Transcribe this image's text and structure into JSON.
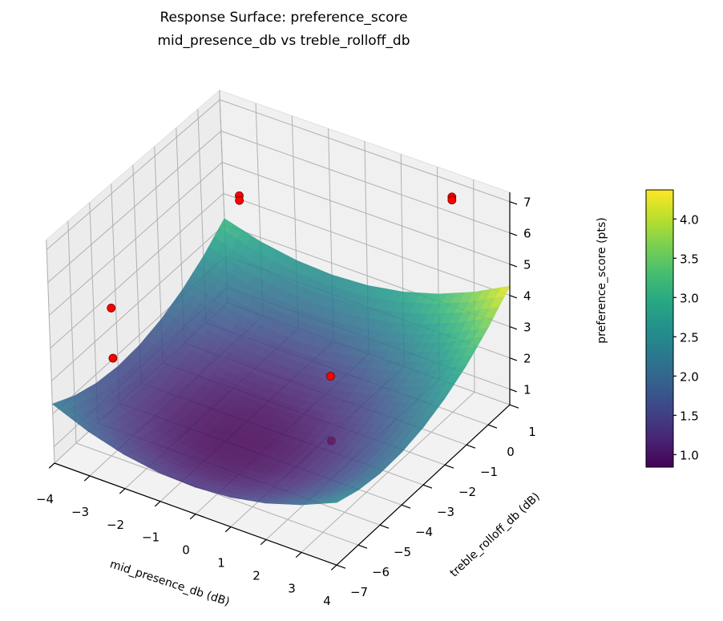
{
  "chart_data": {
    "type": "surface",
    "title": "Response Surface: preference_score",
    "subtitle": "mid_presence_db vs treble_rolloff_db",
    "xlabel": "mid_presence_db (dB)",
    "ylabel": "treble_rolloff_db (dB)",
    "zlabel": "preference_score (pts)",
    "xlim": [
      -4,
      4
    ],
    "ylim": [
      -7,
      1
    ],
    "zlim": [
      0.5,
      7.3
    ],
    "xticks": [
      "−4",
      "−3",
      "−2",
      "−1",
      "0",
      "1",
      "2",
      "3",
      "4"
    ],
    "yticks": [
      "−7",
      "−6",
      "−5",
      "−4",
      "−3",
      "−2",
      "−1",
      "0",
      "1"
    ],
    "zticks": [
      "1",
      "2",
      "3",
      "4",
      "5",
      "6",
      "7"
    ],
    "grid": true,
    "colormap": "viridis",
    "surface_alpha": 0.85,
    "surface": {
      "x": [
        -4,
        -3,
        -2,
        -1,
        0,
        1,
        2,
        3,
        4
      ],
      "y": [
        -7,
        -6,
        -5,
        -4,
        -3,
        -2,
        -1,
        0,
        1
      ],
      "z": [
        [
          2.3,
          1.86,
          1.55,
          1.38,
          1.34,
          1.43,
          1.65,
          2.01,
          2.5
        ],
        [
          1.95,
          1.52,
          1.23,
          1.07,
          1.04,
          1.15,
          1.38,
          1.76,
          2.26
        ],
        [
          1.73,
          1.32,
          1.04,
          0.89,
          0.88,
          1.0,
          1.25,
          1.63,
          2.15
        ],
        [
          1.64,
          1.24,
          0.98,
          0.85,
          0.85,
          0.98,
          1.25,
          1.65,
          2.18
        ],
        [
          1.69,
          1.31,
          1.05,
          0.94,
          0.95,
          1.1,
          1.38,
          1.79,
          2.34
        ],
        [
          1.87,
          1.5,
          1.26,
          1.16,
          1.19,
          1.35,
          1.64,
          2.07,
          2.63
        ],
        [
          2.18,
          1.82,
          1.6,
          1.51,
          1.55,
          1.73,
          2.04,
          2.48,
          3.05
        ],
        [
          2.62,
          2.28,
          2.07,
          2.0,
          2.06,
          2.24,
          2.57,
          3.02,
          3.61
        ],
        [
          3.2,
          2.87,
          2.68,
          2.62,
          2.69,
          2.89,
          3.23,
          3.7,
          4.3
        ]
      ]
    },
    "points": {
      "color": "#ff0000",
      "values": [
        {
          "x": -2.3,
          "y": -1,
          "z": 5.85
        },
        {
          "x": -2.3,
          "y": -1,
          "z": 5.7
        },
        {
          "x": 2.4,
          "y": 1,
          "z": 6.5
        },
        {
          "x": 2.4,
          "y": 1,
          "z": 6.4
        },
        {
          "x": -3.5,
          "y": -5,
          "z": 4.25
        },
        {
          "x": -3.5,
          "y": -5,
          "z": 2.7
        },
        {
          "x": 1.4,
          "y": -3,
          "z": 2.9
        },
        {
          "x": 1.4,
          "y": -3,
          "z": 0.85
        }
      ]
    },
    "colorbar": {
      "range": [
        0.84,
        4.37
      ],
      "ticks": [
        "1.0",
        "1.5",
        "2.0",
        "2.5",
        "3.0",
        "3.5",
        "4.0"
      ],
      "tick_values": [
        1.0,
        1.5,
        2.0,
        2.5,
        3.0,
        3.5,
        4.0
      ]
    }
  }
}
